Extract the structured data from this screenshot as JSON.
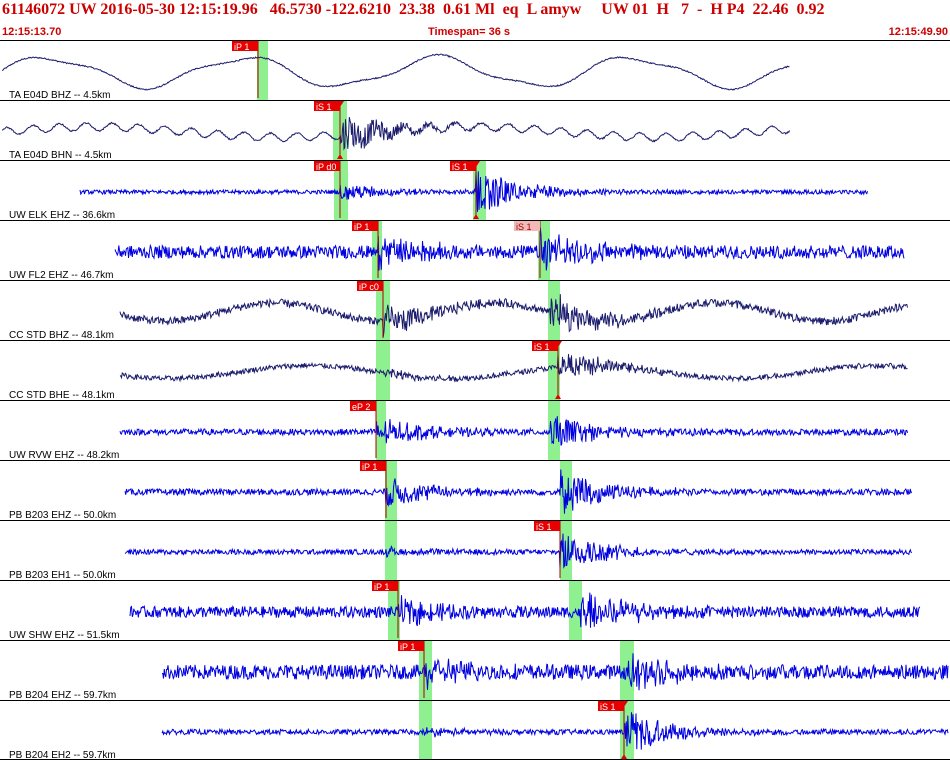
{
  "header": {
    "event_id": "61146072",
    "network": "UW",
    "datetime": "2016-05-30 12:15:19.96",
    "lat": "46.5730",
    "lon": "-122.6210",
    "depth": "23.38",
    "magnitude": "0.61",
    "mag_type": "Ml",
    "event_type": "eq",
    "flag": "L",
    "analyst": "amyw",
    "source": "UW 01",
    "quality": "H",
    "count": "7",
    "dash": "-",
    "proc": "H P4",
    "gap": "22.46",
    "rms": "0.92"
  },
  "time_start": "12:15:13.70",
  "timespan_label": "Timespan=",
  "timespan_value": "36 s",
  "time_end": "12:15:49.90",
  "colors": {
    "header_text": "#cc0000",
    "trace_blue": "#0000e0",
    "trace_navy": "#1c1c6e",
    "pick_flag": "#e80000",
    "pick_flag_light": "#f4b8b8",
    "pick_window": "#8ef08e",
    "divider": "#000000"
  },
  "channels": [
    {
      "label": "TA E04D BHZ -- 4.5km",
      "color": "navy",
      "start": 2,
      "end": 790,
      "amp": 0.55,
      "style": "lowfreq",
      "picks": [
        {
          "label": "iP 1",
          "t": 258,
          "win": [
            257,
            268
          ],
          "amp_x": 345
        }
      ]
    },
    {
      "label": "TA E04D BHN -- 4.5km",
      "color": "navy",
      "start": 2,
      "end": 790,
      "amp": 0.18,
      "style": "lowfreq2",
      "picks": [
        {
          "label": "iS 1",
          "t": 340,
          "win": [
            333,
            347
          ],
          "marker": true,
          "burst": 0.8
        }
      ]
    },
    {
      "label": "UW ELK EHZ -- 36.6km",
      "color": "blue",
      "start": 80,
      "end": 868,
      "amp": 0.08,
      "style": "noise",
      "picks": [
        {
          "label": "iP d0",
          "t": 340,
          "win": [
            334,
            348
          ],
          "burst": 0.35
        },
        {
          "label": "iS 1",
          "t": 476,
          "win": [
            473,
            486
          ],
          "marker": true,
          "burst": 0.9
        }
      ]
    },
    {
      "label": "UW FL2 EHZ -- 46.7km",
      "color": "blue",
      "start": 115,
      "end": 904,
      "amp": 0.25,
      "style": "noise",
      "picks": [
        {
          "label": "iP 1",
          "t": 378,
          "win": [
            372,
            382
          ],
          "burst": 0.6
        },
        {
          "label": "iS 1",
          "t": 540,
          "win": [
            538,
            550
          ],
          "light": true,
          "burst": 0.75
        }
      ]
    },
    {
      "label": "CC STD BHZ -- 48.1km",
      "color": "navy",
      "start": 120,
      "end": 908,
      "amp": 0.3,
      "style": "mixed",
      "picks": [
        {
          "label": "iP c0",
          "t": 383,
          "win": [
            376,
            390
          ],
          "burst": 0.6
        },
        {
          "label": "",
          "t": 550,
          "win": [
            548,
            560
          ],
          "burst": 0.85
        }
      ]
    },
    {
      "label": "CC STD BHE -- 48.1km",
      "color": "navy",
      "start": 120,
      "end": 908,
      "amp": 0.2,
      "style": "mixed2",
      "picks": [
        {
          "label": "",
          "t": 384,
          "win": [
            376,
            390
          ],
          "burst": 0.2
        },
        {
          "label": "iS 1",
          "t": 558,
          "win": [
            548,
            560
          ],
          "marker": true,
          "burst": 0.6
        }
      ]
    },
    {
      "label": "UW RVW EHZ -- 48.2km",
      "color": "blue",
      "start": 120,
      "end": 908,
      "amp": 0.12,
      "style": "noise",
      "picks": [
        {
          "label": "eP 2",
          "t": 376,
          "win": [
            376,
            386
          ],
          "burst": 0.6
        },
        {
          "label": "",
          "t": 550,
          "win": [
            548,
            560
          ],
          "burst": 0.7
        }
      ]
    },
    {
      "label": "PB B203 EHZ -- 50.0km",
      "color": "blue",
      "start": 125,
      "end": 912,
      "amp": 0.12,
      "style": "noise",
      "picks": [
        {
          "label": "iP 1",
          "t": 386,
          "win": [
            385,
            397
          ],
          "burst": 0.6
        },
        {
          "label": "",
          "t": 560,
          "win": [
            560,
            572
          ],
          "burst": 0.9
        }
      ]
    },
    {
      "label": "PB B203 EH1 -- 50.0km",
      "color": "blue",
      "start": 125,
      "end": 912,
      "amp": 0.1,
      "style": "noise",
      "picks": [
        {
          "label": "",
          "t": 386,
          "win": [
            385,
            397
          ],
          "burst": 0.15
        },
        {
          "label": "iS 1",
          "t": 560,
          "win": [
            560,
            572
          ],
          "burst": 0.8
        }
      ]
    },
    {
      "label": "UW SHW EHZ -- 51.5km",
      "color": "blue",
      "start": 130,
      "end": 920,
      "amp": 0.22,
      "style": "noise",
      "picks": [
        {
          "label": "iP 1",
          "t": 398,
          "win": [
            388,
            400
          ],
          "burst": 0.5
        },
        {
          "label": "",
          "t": 580,
          "win": [
            569,
            582
          ],
          "burst": 0.85
        }
      ]
    },
    {
      "label": "PB B204 EHZ -- 59.7km",
      "color": "blue",
      "start": 162,
      "end": 948,
      "amp": 0.28,
      "style": "noise",
      "picks": [
        {
          "label": "iP 1",
          "t": 424,
          "win": [
            419,
            432
          ],
          "burst": 0.6
        },
        {
          "label": "",
          "t": 628,
          "win": [
            620,
            634
          ],
          "burst": 0.85
        }
      ]
    },
    {
      "label": "PB B204 EH2 -- 59.7km",
      "color": "blue",
      "start": 162,
      "end": 948,
      "amp": 0.1,
      "style": "noise",
      "picks": [
        {
          "label": "",
          "t": 424,
          "win": [
            419,
            432
          ],
          "burst": 0.15
        },
        {
          "label": "iS 1",
          "t": 624,
          "win": [
            620,
            634
          ],
          "marker": true,
          "burst": 0.9
        }
      ]
    }
  ]
}
